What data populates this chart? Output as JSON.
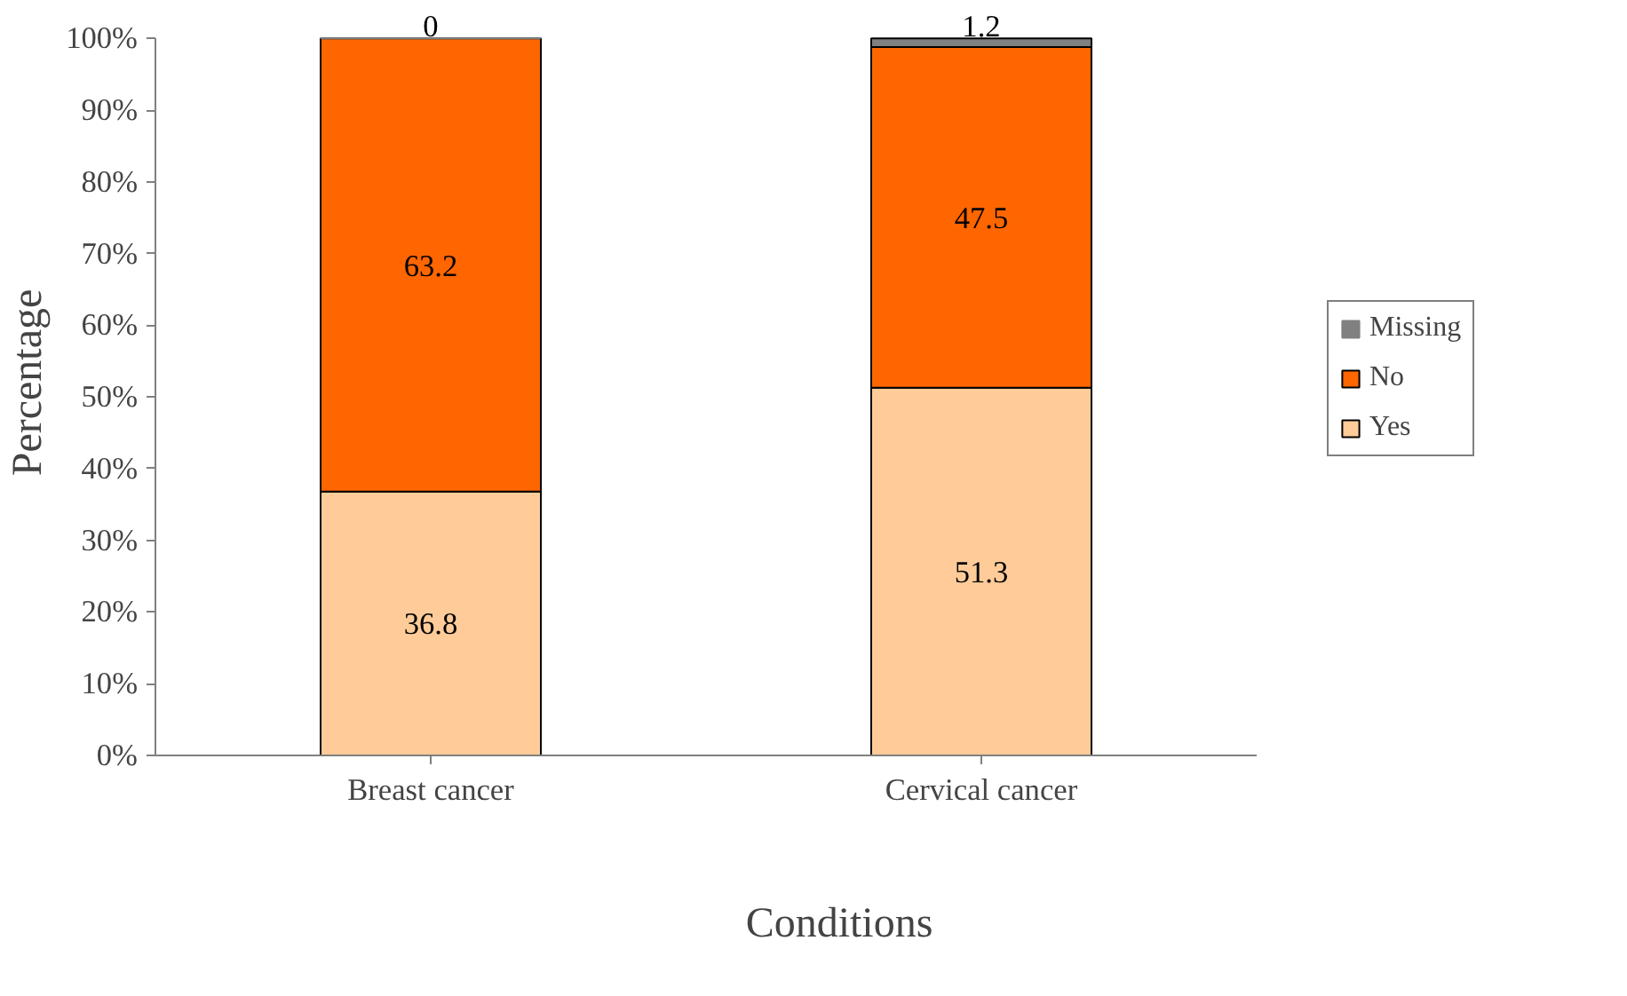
{
  "chart_data": {
    "type": "bar",
    "stacked": true,
    "xlabel": "Conditions",
    "ylabel": "Percentage",
    "categories": [
      "Breast cancer",
      "Cervical cancer"
    ],
    "series": [
      {
        "name": "Yes",
        "color": "#ffcc99",
        "values": [
          36.8,
          51.3
        ]
      },
      {
        "name": "No",
        "color": "#ff6600",
        "values": [
          63.2,
          47.5
        ]
      },
      {
        "name": "Missing",
        "color": "#808080",
        "values": [
          0,
          1.2
        ]
      }
    ],
    "ylim": [
      0,
      100
    ],
    "yticks": [
      {
        "value": 0,
        "label": "0%"
      },
      {
        "value": 10,
        "label": "10%"
      },
      {
        "value": 20,
        "label": "20%"
      },
      {
        "value": 30,
        "label": "30%"
      },
      {
        "value": 40,
        "label": "40%"
      },
      {
        "value": 50,
        "label": "50%"
      },
      {
        "value": 60,
        "label": "60%"
      },
      {
        "value": 70,
        "label": "70%"
      },
      {
        "value": 80,
        "label": "80%"
      },
      {
        "value": 90,
        "label": "90%"
      },
      {
        "value": 100,
        "label": "100%"
      }
    ],
    "data_labels": true,
    "grid": false,
    "legend": "right"
  }
}
